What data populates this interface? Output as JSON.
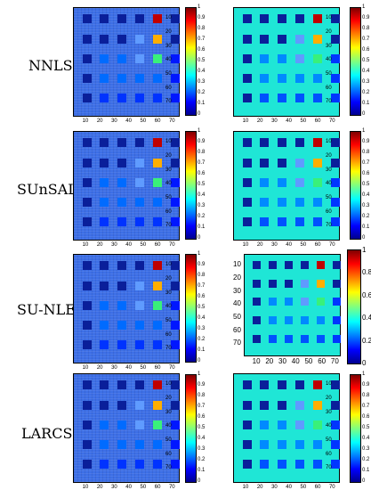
{
  "row_labels": [
    "NNLS",
    "SUnSAL",
    "SU-NLE",
    "LARCSU"
  ],
  "axis_ticks": [
    "10",
    "20",
    "30",
    "40",
    "50",
    "60",
    "70"
  ],
  "cbar_ticks_fine": [
    "0",
    "0.1",
    "0.2",
    "0.3",
    "0.4",
    "0.5",
    "0.6",
    "0.7",
    "0.8",
    "0.9",
    "1"
  ],
  "cbar_ticks_coarse": [
    "0",
    "0.2",
    "0.4",
    "0.6",
    "0.8",
    "1"
  ],
  "colors": {
    "noisy_background": "#3d6fe6",
    "clean_background": "#1fe6d6",
    "block_dark": "#0a1f9a",
    "block_mid": "#5f9bff",
    "block_green": "#39f07a",
    "block_orange": "#ffae00",
    "block_red": "#c00000"
  },
  "block_values": [
    [
      0.0,
      0.0,
      0.0,
      0.0,
      1.0,
      0.0
    ],
    [
      0.0,
      0.0,
      0.0,
      0.3,
      0.8,
      0.0
    ],
    [
      0.0,
      0.2,
      0.2,
      0.3,
      0.6,
      0.05
    ],
    [
      0.0,
      0.2,
      0.2,
      0.2,
      0.2,
      0.05
    ],
    [
      0.0,
      0.1,
      0.1,
      0.1,
      0.1,
      0.05
    ]
  ]
}
